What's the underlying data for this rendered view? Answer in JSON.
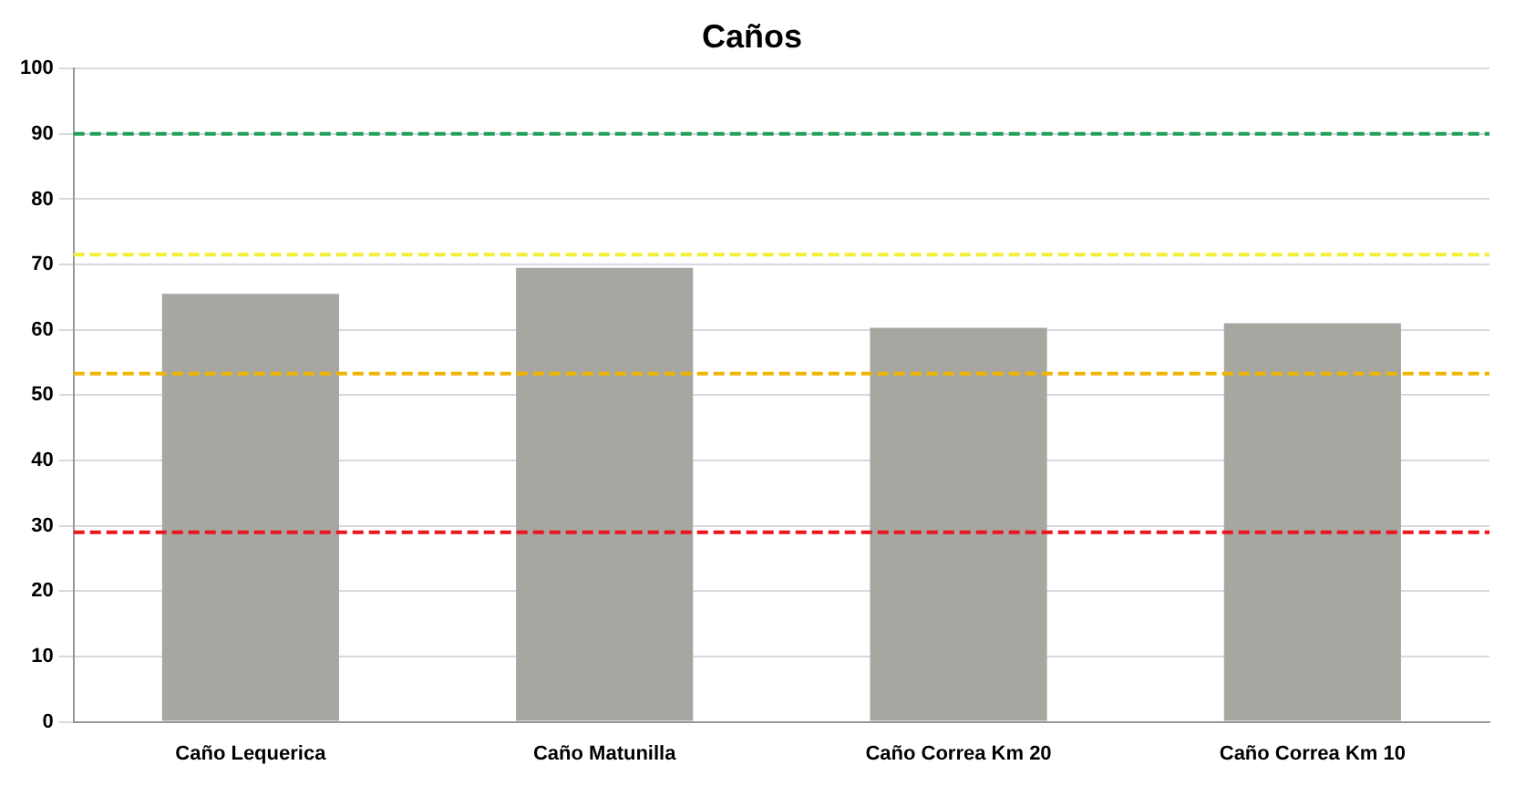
{
  "chart_data": {
    "type": "bar",
    "title": "Caños",
    "categories": [
      "Caño Lequerica",
      "Caño Matunilla",
      "Caño Correa Km 20",
      "Caño Correa Km 10"
    ],
    "values": [
      65.5,
      69.5,
      60.3,
      61
    ],
    "color": "#a8a6a0",
    "ylim": [
      0,
      100
    ],
    "yticks": [
      0,
      10,
      20,
      30,
      40,
      50,
      60,
      70,
      80,
      90,
      100
    ],
    "grid": "y",
    "legend": false,
    "ref_lines": [
      {
        "axis": "y",
        "value": 90,
        "color": "#1fa05a",
        "line_style": "dashed"
      },
      {
        "axis": "y",
        "value": 71.5,
        "color": "#f2ee3a",
        "line_style": "dashed"
      },
      {
        "axis": "y",
        "value": 53.3,
        "color": "#f0b400",
        "line_style": "dashed"
      },
      {
        "axis": "y",
        "value": 29,
        "color": "#e8161e",
        "line_style": "dashed"
      }
    ]
  }
}
